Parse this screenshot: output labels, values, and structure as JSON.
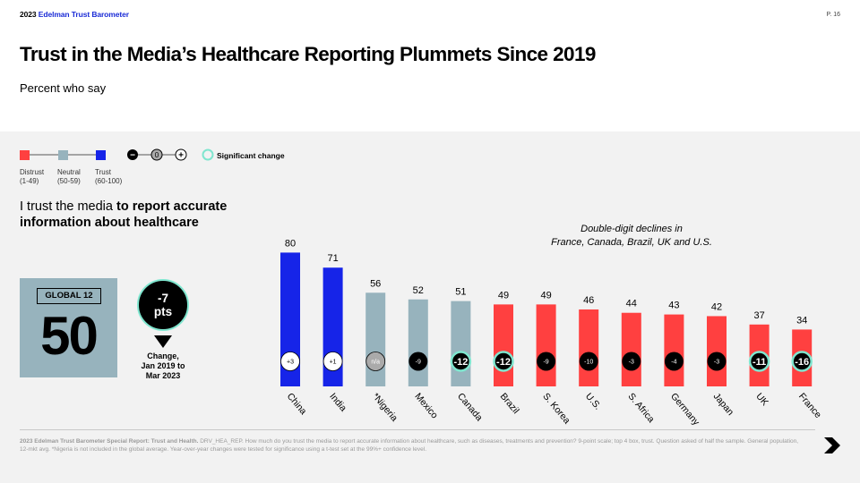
{
  "header": {
    "brand_year": "2023",
    "brand_name": "Edelman Trust Barometer",
    "page_number": "P. 16",
    "title": "Trust in the Media’s Healthcare Reporting Plummets Since 2019",
    "subtitle": "Percent who say"
  },
  "legend": {
    "scale": [
      {
        "label": "Distrust",
        "range": "(1-49)",
        "color": "#ff4040"
      },
      {
        "label": "Neutral",
        "range": "(50-59)",
        "color": "#97b3bd"
      },
      {
        "label": "Trust",
        "range": "(60-100)",
        "color": "#1624e8"
      }
    ],
    "change_symbols": [
      "−",
      "0",
      "+"
    ],
    "significant_label": "Significant change",
    "significant_color": "#7fe6cf"
  },
  "question": {
    "prefix": "I trust the media ",
    "bold": "to report accurate information about healthcare"
  },
  "global": {
    "label": "GLOBAL 12",
    "value": "50",
    "change_value": "-7",
    "change_unit": "pts",
    "change_caption_1": "Change,",
    "change_caption_2": "Jan 2019 to",
    "change_caption_3": "Mar 2023"
  },
  "annotation": {
    "line1": "Double-digit declines in",
    "line2": "France, Canada, Brazil, UK and U.S."
  },
  "chart_data": {
    "type": "bar",
    "categories": [
      "China",
      "India",
      "*Nigeria",
      "Mexico",
      "Canada",
      "Brazil",
      "S. Korea",
      "U.S.",
      "S. Africa",
      "Germany",
      "Japan",
      "UK",
      "France"
    ],
    "values": [
      80,
      71,
      56,
      52,
      51,
      49,
      49,
      46,
      44,
      43,
      42,
      37,
      34
    ],
    "colors": [
      "#1624e8",
      "#1624e8",
      "#97b3bd",
      "#97b3bd",
      "#97b3bd",
      "#ff4040",
      "#ff4040",
      "#ff4040",
      "#ff4040",
      "#ff4040",
      "#ff4040",
      "#ff4040",
      "#ff4040"
    ],
    "changes": [
      "+3",
      "+1",
      "n/a",
      "-9",
      "-12",
      "-12",
      "-9",
      "-10",
      "-3",
      "-4",
      "-3",
      "-11",
      "-16"
    ],
    "change_kind": [
      "pos",
      "pos",
      "na",
      "neg",
      "neg",
      "neg",
      "neg",
      "neg",
      "neg",
      "neg",
      "neg",
      "neg",
      "neg"
    ],
    "significant": [
      false,
      false,
      false,
      false,
      true,
      true,
      false,
      false,
      false,
      false,
      false,
      true,
      true
    ],
    "ylim": [
      0,
      100
    ],
    "title": "",
    "xlabel": "",
    "ylabel": ""
  },
  "footnote": {
    "bold": "2023 Edelman Trust Barometer Special Report: Trust and Health.",
    "text": " DRV_HEA_REP. How much do you trust the media to report accurate information about healthcare, such as diseases, treatments and prevention? 9-point scale; top 4 box, trust. Question asked of half the sample. General population, 12-mkt avg. *Nigeria is not included in the global average. Year-over-year changes were tested for significance using a t-test set at the 99%+ confidence level."
  }
}
